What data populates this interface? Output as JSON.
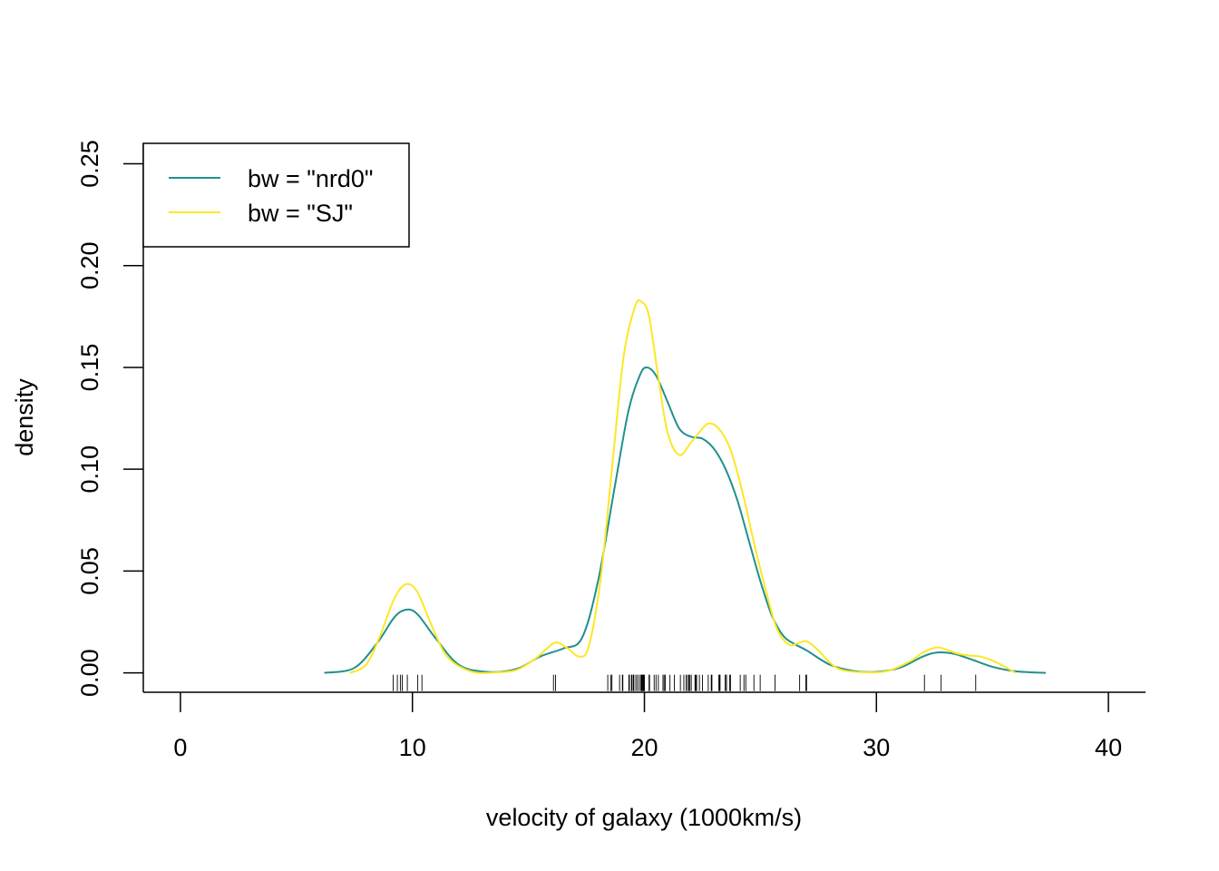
{
  "chart_data": {
    "type": "line",
    "title": "",
    "xlabel": "velocity of galaxy (1000km/s)",
    "ylabel": "density",
    "xlim": [
      -1.6,
      41.6
    ],
    "ylim": [
      -0.0095,
      0.26
    ],
    "x_ticks": [
      0,
      10,
      20,
      30,
      40
    ],
    "x_tick_labels": [
      "0",
      "10",
      "20",
      "30",
      "40"
    ],
    "y_ticks": [
      0,
      0.05,
      0.1,
      0.15,
      0.2,
      0.25
    ],
    "y_tick_labels": [
      "0.00",
      "0.05",
      "0.10",
      "0.15",
      "0.20",
      "0.25"
    ],
    "grid": false,
    "legend_position": "top-left",
    "series": [
      {
        "name": "bw = \"nrd0\"",
        "color": "#21908C",
        "x": [
          6.2,
          7.5,
          8.5,
          9.2,
          9.7,
          10.2,
          11.0,
          12.0,
          13.2,
          14.5,
          15.5,
          16.5,
          17.3,
          18.0,
          18.7,
          19.3,
          19.8,
          20.1,
          20.5,
          21.0,
          21.5,
          22.0,
          22.5,
          23.0,
          23.5,
          24.0,
          24.5,
          25.0,
          25.5,
          26.0,
          26.5,
          27.0,
          28.0,
          29.0,
          30.0,
          31.0,
          32.0,
          32.6,
          33.3,
          34.0,
          35.0,
          36.0,
          37.3
        ],
        "y": [
          0.0,
          0.0025,
          0.015,
          0.027,
          0.031,
          0.029,
          0.017,
          0.004,
          0.0005,
          0.002,
          0.008,
          0.012,
          0.017,
          0.045,
          0.09,
          0.128,
          0.146,
          0.15,
          0.146,
          0.133,
          0.12,
          0.116,
          0.115,
          0.11,
          0.1,
          0.085,
          0.065,
          0.045,
          0.028,
          0.018,
          0.014,
          0.011,
          0.004,
          0.001,
          0.0005,
          0.0025,
          0.008,
          0.01,
          0.0095,
          0.007,
          0.003,
          0.0008,
          0.0
        ]
      },
      {
        "name": "bw = \"SJ\"",
        "color": "#FDE725",
        "x": [
          7.3,
          8.0,
          8.6,
          9.2,
          9.7,
          10.2,
          10.8,
          11.5,
          12.5,
          13.5,
          14.5,
          15.3,
          15.8,
          16.2,
          16.7,
          17.2,
          17.6,
          18.1,
          18.6,
          19.1,
          19.6,
          19.9,
          20.2,
          20.6,
          21.0,
          21.5,
          22.0,
          22.5,
          22.8,
          23.2,
          23.7,
          24.2,
          24.7,
          25.2,
          25.7,
          26.2,
          26.6,
          27.0,
          27.5,
          28.0,
          28.5,
          29.5,
          30.5,
          31.5,
          32.0,
          32.6,
          33.0,
          33.5,
          34.0,
          34.5,
          35.2,
          36.0
        ],
        "y": [
          0.0,
          0.004,
          0.018,
          0.036,
          0.0435,
          0.04,
          0.024,
          0.008,
          0.0008,
          0.0002,
          0.0015,
          0.007,
          0.012,
          0.015,
          0.012,
          0.008,
          0.013,
          0.045,
          0.1,
          0.155,
          0.18,
          0.182,
          0.175,
          0.145,
          0.118,
          0.107,
          0.113,
          0.12,
          0.1225,
          0.12,
          0.11,
          0.09,
          0.065,
          0.042,
          0.022,
          0.014,
          0.0145,
          0.0155,
          0.011,
          0.005,
          0.0015,
          0.0003,
          0.001,
          0.006,
          0.01,
          0.0125,
          0.0115,
          0.0095,
          0.0085,
          0.008,
          0.005,
          0.0
        ]
      }
    ],
    "rug": {
      "color": "#000000",
      "x": [
        9.17,
        9.35,
        9.48,
        9.56,
        9.78,
        10.23,
        10.41,
        16.08,
        16.17,
        18.42,
        18.55,
        18.6,
        18.93,
        19.05,
        19.07,
        19.33,
        19.34,
        19.35,
        19.44,
        19.47,
        19.53,
        19.54,
        19.54,
        19.63,
        19.7,
        19.78,
        19.85,
        19.87,
        19.9,
        19.92,
        19.95,
        19.97,
        20.0,
        20.2,
        20.22,
        20.42,
        20.5,
        20.6,
        20.8,
        20.85,
        20.9,
        21.1,
        21.29,
        21.55,
        21.7,
        21.8,
        21.86,
        21.92,
        21.96,
        22.02,
        22.18,
        22.21,
        22.25,
        22.37,
        22.5,
        22.75,
        22.88,
        22.91,
        23.2,
        23.24,
        23.26,
        23.48,
        23.53,
        23.54,
        23.67,
        23.71,
        24.13,
        24.29,
        24.37,
        24.72,
        24.99,
        25.63,
        26.69,
        26.96,
        26.99,
        32.07,
        32.79,
        34.28
      ]
    }
  }
}
